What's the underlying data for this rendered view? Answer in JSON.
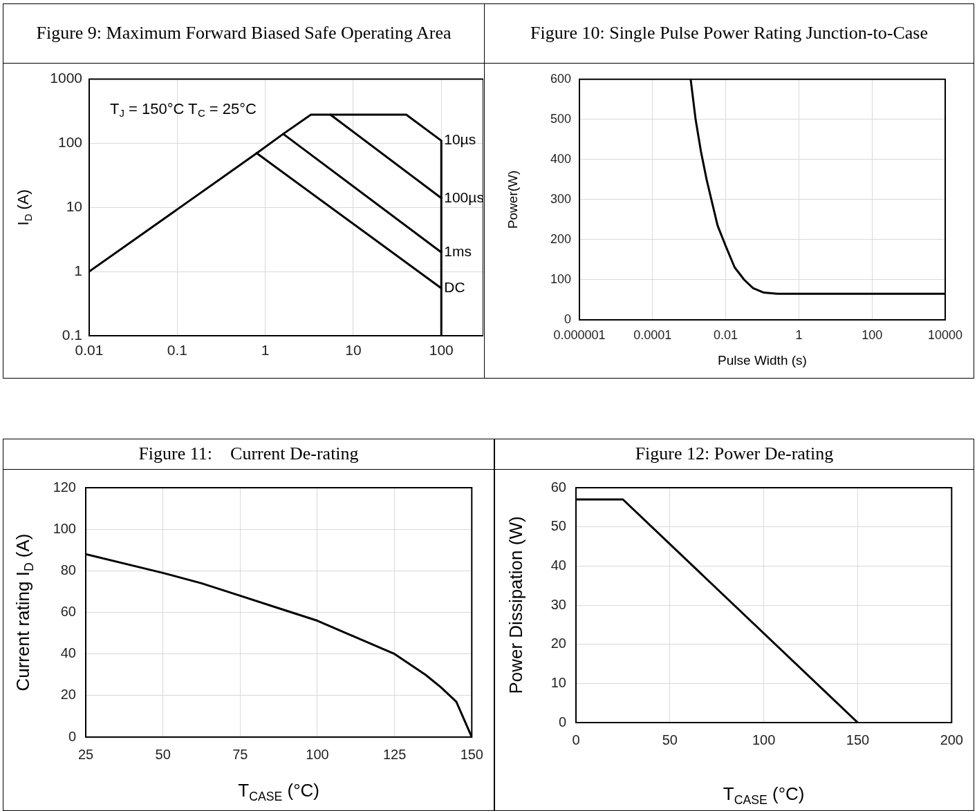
{
  "chart_data": [
    {
      "type": "line",
      "title": "Figure 9: Maximum Forward Biased Safe Operating Area",
      "ylabel": "I$_{D}$ (A)",
      "annotations": [
        "T$_{J}$ = 150°C T$_{C}$ = 25°C"
      ],
      "log": "xy",
      "grid": true,
      "xlim": [
        0.01,
        300
      ],
      "ylim": [
        0.1,
        1000
      ],
      "xticks": [
        0.01,
        0.1,
        1,
        10,
        100
      ],
      "yticks": [
        0.1,
        1,
        10,
        100,
        1000
      ],
      "series": [
        {
          "name": "10µs",
          "color": "#000000",
          "x": [
            5.5,
            40,
            100,
            100
          ],
          "values": [
            280,
            280,
            110,
            14
          ]
        },
        {
          "name": "100µs",
          "color": "#000000",
          "x": [
            1.6,
            3.3,
            5.5,
            100,
            100
          ],
          "values": [
            140,
            280,
            280,
            14,
            2
          ]
        },
        {
          "name": "1ms",
          "color": "#000000",
          "x": [
            0.8,
            1.6,
            100,
            100
          ],
          "values": [
            70,
            140,
            2,
            0.55
          ]
        },
        {
          "name": "DC",
          "color": "#000000",
          "x": [
            0.01,
            0.8,
            100,
            100
          ],
          "values": [
            1,
            70,
            0.55,
            0.1
          ]
        }
      ]
    },
    {
      "type": "line",
      "title": "Figure 10: Single Pulse Power Rating Junction-to-Case",
      "xlabel": "Pulse Width (s)",
      "ylabel": "Power(W)",
      "log": "x",
      "grid": true,
      "xlim": [
        1e-06,
        10000
      ],
      "ylim": [
        0,
        600
      ],
      "xticks": [
        {
          "value": 1e-06,
          "label": "0.000001"
        },
        0.0001,
        0.01,
        1,
        100,
        10000
      ],
      "yticks": [
        0,
        100,
        200,
        300,
        400,
        500,
        600
      ],
      "color": "#000000",
      "x": [
        0.0011,
        0.0015,
        0.0021,
        0.003,
        0.0041,
        0.006,
        0.01,
        0.0175,
        0.032,
        0.056,
        0.11,
        0.26,
        1,
        100,
        10000
      ],
      "values": [
        600,
        500,
        420,
        350,
        298,
        235,
        184,
        131,
        100,
        79,
        68,
        65,
        65,
        65,
        65
      ]
    },
    {
      "type": "line",
      "title": "Figure 11:    Current De-rating",
      "xlabel": "T$_{CASE}$ (°C)",
      "ylabel": "Current rating I$_{D}$ (A)",
      "grid": true,
      "xlim": [
        25,
        150
      ],
      "ylim": [
        0,
        120
      ],
      "xticks": [
        25,
        50,
        75,
        100,
        125,
        150
      ],
      "yticks": [
        0,
        20,
        40,
        60,
        80,
        100,
        120
      ],
      "color": "#000000",
      "x": [
        25,
        50,
        62.5,
        75,
        87.5,
        100,
        112.5,
        125,
        130,
        135,
        140,
        145,
        150
      ],
      "values": [
        88,
        79,
        74,
        68,
        62,
        56,
        48,
        40,
        35,
        30,
        24,
        17,
        0
      ]
    },
    {
      "type": "line",
      "title": "Figure 12: Power De-rating",
      "xlabel": "T$_{CASE}$ (°C)",
      "ylabel": "Power Dissipation (W)",
      "grid": true,
      "xlim": [
        0,
        200
      ],
      "ylim": [
        0,
        60
      ],
      "xticks": [
        0,
        50,
        100,
        150,
        200
      ],
      "yticks": [
        0,
        10,
        20,
        30,
        40,
        50,
        60
      ],
      "color": "#000000",
      "x": [
        0,
        25,
        150
      ],
      "values": [
        57,
        57,
        0
      ]
    }
  ]
}
